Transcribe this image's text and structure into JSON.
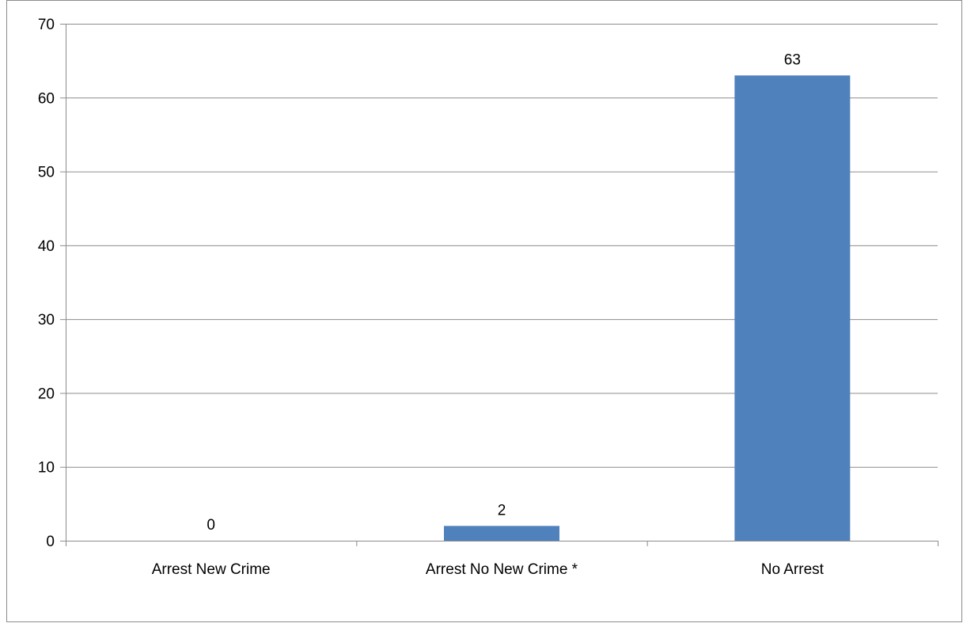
{
  "chart_data": {
    "type": "bar",
    "categories": [
      "Arrest New Crime",
      "Arrest No New Crime *",
      "No Arrest"
    ],
    "values": [
      0,
      2,
      63
    ],
    "data_labels": [
      "0",
      "2",
      "63"
    ],
    "title": "",
    "xlabel": "",
    "ylabel": "",
    "ylim": [
      0,
      70
    ],
    "yticks": [
      0,
      10,
      20,
      30,
      40,
      50,
      60,
      70
    ],
    "grid": true,
    "legend": "none",
    "bar_color": "#4F81BD",
    "grid_color": "#8C8C8C"
  }
}
